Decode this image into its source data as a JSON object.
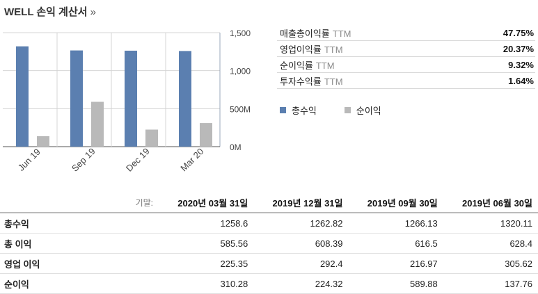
{
  "header": {
    "title": "WELL 손익 계산서",
    "arrow": "»"
  },
  "colors": {
    "revenue": "#5b7fb0",
    "net_income": "#b9b9b9",
    "grid": "#d4d4d4"
  },
  "metrics": [
    {
      "name": "매출총이익률",
      "ttm": "TTM",
      "value": "47.75%"
    },
    {
      "name": "영업이익률",
      "ttm": "TTM",
      "value": "20.37%"
    },
    {
      "name": "순이익률",
      "ttm": "TTM",
      "value": "9.32%"
    },
    {
      "name": "투자수익률",
      "ttm": "TTM",
      "value": "1.64%"
    }
  ],
  "legend": [
    {
      "label": "총수익",
      "color": "#5b7fb0"
    },
    {
      "label": "순이익",
      "color": "#b9b9b9"
    }
  ],
  "chart_data": {
    "type": "bar",
    "categories": [
      "Jun 19",
      "Sep 19",
      "Dec 19",
      "Mar 20"
    ],
    "series": [
      {
        "name": "총수익",
        "values": [
          1320.11,
          1266.13,
          1262.82,
          1258.6
        ]
      },
      {
        "name": "순이익",
        "values": [
          137.76,
          589.88,
          224.32,
          310.28
        ]
      }
    ],
    "yticks": [
      "0M",
      "500M",
      "1,000",
      "1,500"
    ],
    "ylim": [
      0,
      1500
    ],
    "grid": true,
    "legend_position": "right"
  },
  "table": {
    "period_label": "기말:",
    "columns": [
      "2020년 03월 31일",
      "2019년 12월 31일",
      "2019년 09월 30일",
      "2019년 06월 30일"
    ],
    "rows": [
      {
        "label": "총수익",
        "values": [
          "1258.6",
          "1262.82",
          "1266.13",
          "1320.11"
        ]
      },
      {
        "label": "총 이익",
        "values": [
          "585.56",
          "608.39",
          "616.5",
          "628.4"
        ]
      },
      {
        "label": "영업 이익",
        "values": [
          "225.35",
          "292.4",
          "216.97",
          "305.62"
        ]
      },
      {
        "label": "순이익",
        "values": [
          "310.28",
          "224.32",
          "589.88",
          "137.76"
        ]
      }
    ]
  }
}
